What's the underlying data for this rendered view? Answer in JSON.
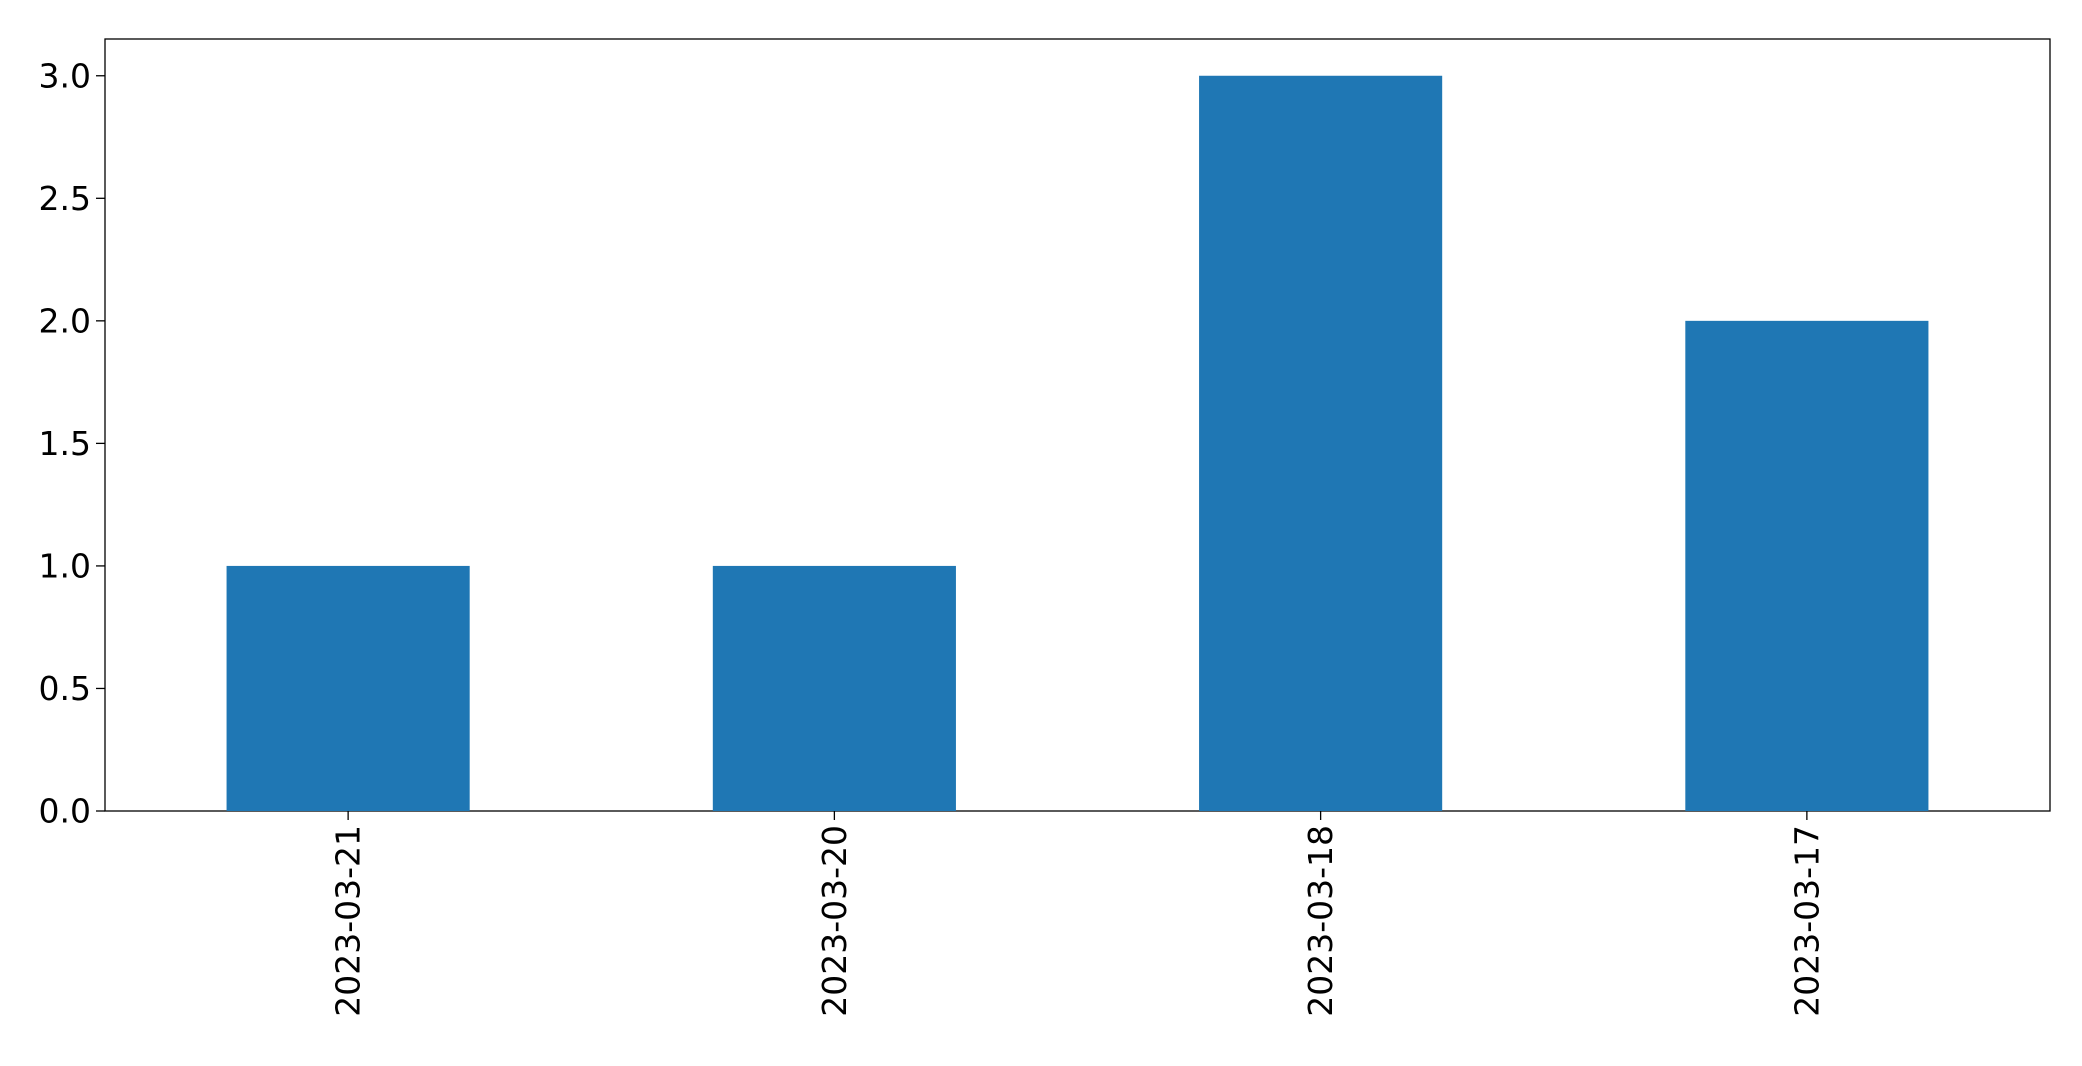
{
  "chart_data": {
    "type": "bar",
    "title": "",
    "xlabel": "",
    "ylabel": "",
    "categories": [
      "2023-03-21",
      "2023-03-20",
      "2023-03-18",
      "2023-03-17"
    ],
    "values": [
      1,
      1,
      3,
      2
    ],
    "ylim": [
      0,
      3.15
    ],
    "yticks": [
      "0.0",
      "0.5",
      "1.0",
      "1.5",
      "2.0",
      "2.5",
      "3.0"
    ],
    "bar_color": "#1f77b4",
    "grid": false,
    "legend": "none"
  }
}
